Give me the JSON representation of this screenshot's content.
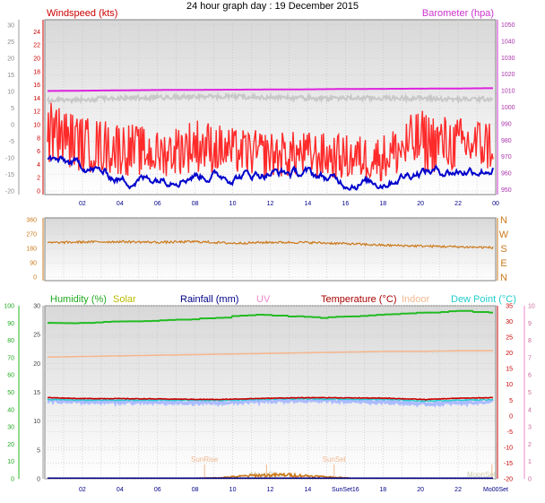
{
  "title": "24 hour graph day : 19 December 2015",
  "colors": {
    "windspeed": "#dd0000",
    "gust": "#ff2a2a",
    "avg_speed": "#0000cc",
    "barometer": "#dd22dd",
    "barometer_alt": "#c8c8c8",
    "direction": "#cc7a1c",
    "humidity": "#22bb22",
    "solar": "#cccc00",
    "rainfall": "#000088",
    "uv": "#ee88cc",
    "temperature": "#cc0000",
    "indoor": "#f4b890",
    "dew_point": "#22cccc",
    "dew_point_fill": "#aabbff",
    "sun_marker": "#f0b890",
    "moon_marker": "#ccccaa"
  },
  "chart_data": [
    {
      "type": "line",
      "name": "wind-barometer",
      "left_labels": [
        {
          "text": "Windspeed (kts)",
          "color": "#cc0000"
        }
      ],
      "right_labels": [
        {
          "text": "Barometer (hpa)",
          "color": "#cc33cc"
        }
      ],
      "x_ticks": [
        "02",
        "04",
        "06",
        "08",
        "10",
        "12",
        "14",
        "16",
        "18",
        "20",
        "22",
        "00"
      ],
      "y_outer_ticks": [
        "30",
        "25",
        "20",
        "15",
        "10",
        "5",
        "0",
        "-5",
        "-10",
        "-15",
        "-20"
      ],
      "y_left_ticks": [
        "24",
        "22",
        "20",
        "18",
        "16",
        "14",
        "12",
        "10",
        "8",
        "6",
        "4",
        "2",
        "0"
      ],
      "y_left_range": [
        0,
        25
      ],
      "y_right_ticks": [
        "1050",
        "1040",
        "1030",
        "1020",
        "1010",
        "1000",
        "990",
        "980",
        "970",
        "960",
        "950"
      ],
      "y_right_range": [
        947,
        1053
      ],
      "series": {
        "barometer": [
          1009.8,
          1010.0,
          1010.2,
          1010.4,
          1010.5,
          1010.6,
          1010.7,
          1010.8,
          1011.0,
          1011.1,
          1011.2,
          1011.3,
          1011.5
        ],
        "wind_alt": [
          13.6,
          13.8,
          14.0,
          14.1,
          14.2,
          14.2,
          14.1,
          14.0,
          14.0,
          14.0,
          14.0,
          13.8,
          13.9
        ],
        "wind_avg": [
          4.6,
          3.8,
          1.6,
          2.0,
          2.5,
          2.2,
          2.8,
          2.6,
          1.3,
          1.3,
          3.1,
          3.0,
          3.4
        ],
        "wind_gust_mid": [
          9.0,
          7.0,
          6.5,
          5.5,
          7.0,
          6.0,
          5.5,
          5.5,
          5.0,
          5.0,
          7.5,
          7.0,
          7.0
        ],
        "wind_gust_spread": [
          3.5,
          3.0,
          3.0,
          2.5,
          3.0,
          2.5,
          2.5,
          2.5,
          2.5,
          2.5,
          3.5,
          3.0,
          3.0
        ]
      }
    },
    {
      "type": "scatter",
      "name": "wind-direction",
      "x_ticks": [
        "02",
        "04",
        "06",
        "08",
        "10",
        "12",
        "14",
        "16",
        "18",
        "20",
        "22",
        "00"
      ],
      "y_left_ticks": [
        "360",
        "270",
        "180",
        "90",
        "0"
      ],
      "y_range": [
        0,
        360
      ],
      "y_right_ticks": [
        "N",
        "W",
        "S",
        "E",
        "N"
      ],
      "series": {
        "direction": [
          215,
          220,
          222,
          218,
          222,
          212,
          218,
          217,
          210,
          200,
          195,
          190,
          185
        ]
      }
    },
    {
      "type": "line",
      "name": "temperature-humidity",
      "left_labels": [
        {
          "text": "Humidity (%)",
          "color": "#22aa22"
        },
        {
          "text": "Solar",
          "color": "#bbbb00"
        },
        {
          "text": "Rainfall (mm)",
          "color": "#000088"
        },
        {
          "text": "UV",
          "color": "#ee88cc"
        },
        {
          "text": "Temperature (°C)",
          "color": "#aa0000"
        },
        {
          "text": "Indoor",
          "color": "#f4b890"
        },
        {
          "text": "Dew Point (°C)",
          "color": "#22cccc"
        }
      ],
      "x_ticks": [
        "02",
        "04",
        "06",
        "08",
        "10",
        "12",
        "14",
        "SunSet16",
        "18",
        "20",
        "22",
        "Mo00Set"
      ],
      "y_outer_ticks": [
        "100",
        "90",
        "80",
        "70",
        "60",
        "50",
        "40",
        "30",
        "20",
        "10",
        "0"
      ],
      "y_left_ticks": [
        "30",
        "25",
        "20",
        "15",
        "10",
        "5",
        "0"
      ],
      "y_left_range": [
        0,
        30
      ],
      "y_right_ticks": [
        "35",
        "30",
        "25",
        "20",
        "15",
        "10",
        "5",
        "0",
        "-5",
        "-10",
        "-15",
        "-20"
      ],
      "y_right_range": [
        -20,
        35
      ],
      "y_farright_ticks": [
        "10",
        "9",
        "8",
        "7",
        "6",
        "5",
        "4",
        "3",
        "2",
        "1",
        "0"
      ],
      "annotations": [
        {
          "text": "SunRise",
          "hour": 8.5
        },
        {
          "text": "SunSet",
          "hour": 15.4
        },
        {
          "text": "MoonRise",
          "hour": 11.8
        },
        {
          "text": "MoonSet",
          "hour": 23.8
        }
      ],
      "series": {
        "humidity": [
          90,
          90,
          91,
          91,
          92,
          93,
          95,
          94,
          93,
          94,
          95,
          96,
          97,
          96
        ],
        "indoor": [
          21.1,
          21.2,
          21.3,
          21.4,
          21.5,
          21.6,
          21.7,
          21.8,
          21.9,
          22.0,
          22.1,
          22.1,
          22.2,
          22.2
        ],
        "temperature": [
          5.8,
          5.5,
          5.5,
          5.4,
          5.3,
          5.2,
          5.5,
          5.7,
          5.8,
          5.7,
          5.6,
          5.2,
          5.6,
          5.8
        ],
        "dew_point": [
          5.2,
          5.0,
          5.0,
          5.0,
          5.0,
          4.9,
          5.2,
          5.4,
          5.4,
          5.3,
          5.2,
          4.7,
          5.0,
          5.2
        ],
        "dew_low": [
          4.8,
          4.5,
          4.4,
          4.3,
          4.2,
          4.1,
          4.6,
          4.8,
          4.9,
          4.7,
          4.4,
          3.8,
          4.2,
          4.5
        ],
        "solar": [
          0,
          0,
          0,
          0,
          0,
          0.1,
          0.5,
          0.6,
          0.3,
          0,
          0,
          0,
          0,
          0
        ],
        "rainfall": [
          0,
          0,
          0,
          0,
          0,
          0,
          0,
          0,
          0,
          0,
          0,
          0,
          0,
          0
        ]
      }
    }
  ]
}
